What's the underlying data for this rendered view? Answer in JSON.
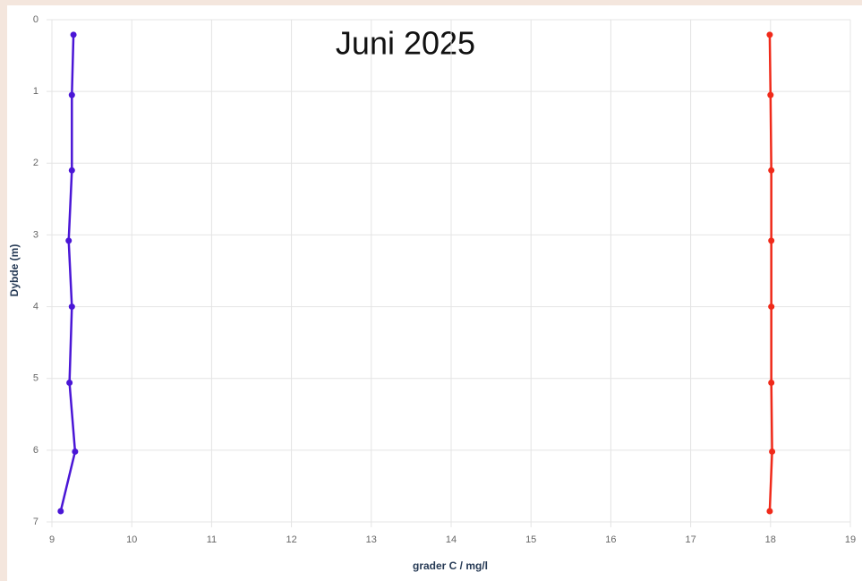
{
  "chart_data": {
    "type": "line",
    "title": "Juni 2025",
    "xlabel": "grader C / mg/l",
    "ylabel": "Dybde (m)",
    "xlim": [
      9,
      19
    ],
    "xticks": [
      9,
      10,
      11,
      12,
      13,
      14,
      15,
      16,
      17,
      18,
      19
    ],
    "ylim": [
      0,
      7
    ],
    "yticks": [
      0,
      1,
      2,
      3,
      4,
      5,
      6,
      7
    ],
    "y_inverted": true,
    "grid": true,
    "series": [
      {
        "color": "#4a16d6",
        "x": [
          9.27,
          9.25,
          9.25,
          9.21,
          9.25,
          9.22,
          9.29,
          9.11
        ],
        "values": [
          0.21,
          1.05,
          2.1,
          3.08,
          4.0,
          5.06,
          6.02,
          6.85
        ]
      },
      {
        "color": "#f02a1a",
        "x": [
          17.99,
          18.0,
          18.01,
          18.01,
          18.01,
          18.01,
          18.02,
          17.99
        ],
        "values": [
          0.21,
          1.05,
          2.1,
          3.08,
          4.0,
          5.06,
          6.02,
          6.85
        ]
      }
    ]
  }
}
